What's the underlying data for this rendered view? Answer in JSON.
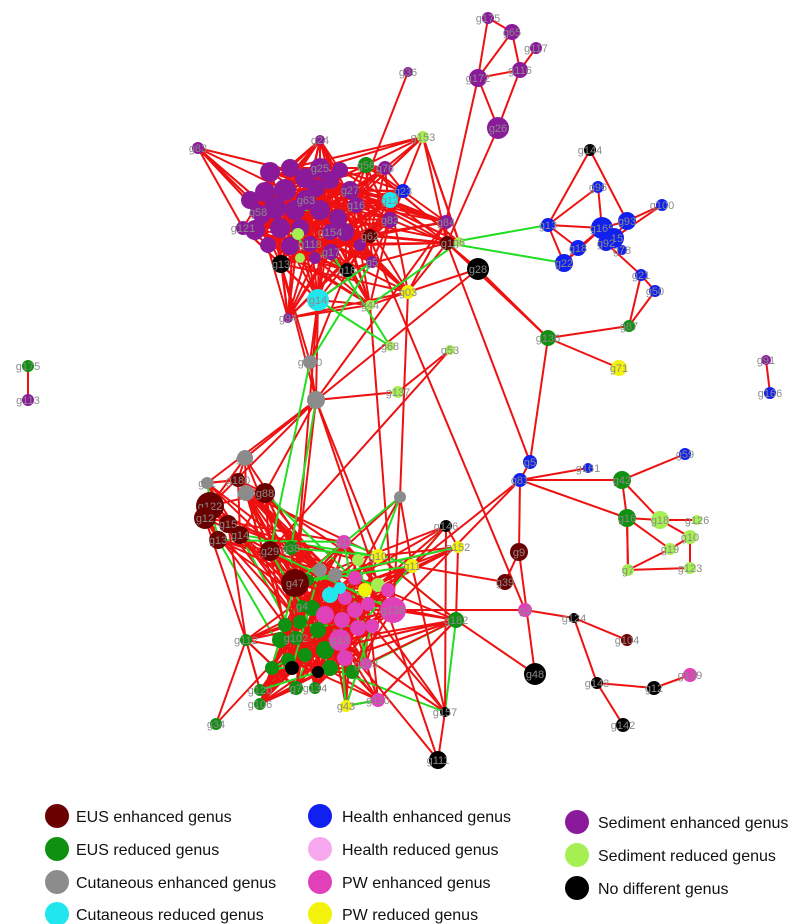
{
  "colors": {
    "EUS_enh": "#6b0000",
    "EUS_red": "#109010",
    "Cut_enh": "#8c8c8c",
    "Cut_red": "#22e6ee",
    "Hea_enh": "#1020ee",
    "Hea_red": "#f7a8ee",
    "PW_enh": "#e040b8",
    "PW_red": "#f2f20a",
    "Sed_enh": "#8a1a9a",
    "Sed_red": "#a6ef52",
    "No_diff": "#000000",
    "edge_pos": "#ee1111",
    "edge_neg": "#22dd22"
  },
  "legend": [
    {
      "label": "EUS enhanced genus",
      "color": "EUS_enh"
    },
    {
      "label": "EUS reduced genus",
      "color": "EUS_red"
    },
    {
      "label": "Cutaneous enhanced genus",
      "color": "Cut_enh"
    },
    {
      "label": "Cutaneous reduced genus",
      "color": "Cut_red"
    },
    {
      "label": "Health enhanced genus",
      "color": "Hea_enh"
    },
    {
      "label": "Health reduced genus",
      "color": "Hea_red"
    },
    {
      "label": "PW enhanced genus",
      "color": "PW_enh"
    },
    {
      "label": "PW reduced genus",
      "color": "PW_red"
    },
    {
      "label": "Sediment enhanced genus",
      "color": "Sed_enh"
    },
    {
      "label": "Sediment reduced genus",
      "color": "Sed_red"
    },
    {
      "label": "No different genus",
      "color": "No_diff"
    }
  ],
  "nodes": [
    {
      "id": "g175",
      "label": "g175",
      "color": "Sed_enh"
    },
    {
      "id": "g65",
      "label": "g65",
      "color": "Sed_enh"
    },
    {
      "id": "g117",
      "label": "g117",
      "color": "Sed_enh"
    },
    {
      "id": "g116",
      "label": "g116",
      "color": "Sed_enh"
    },
    {
      "id": "g172",
      "label": "g172",
      "color": "Sed_enh"
    },
    {
      "id": "g26",
      "label": "g26",
      "color": "Sed_enh"
    },
    {
      "id": "g36",
      "label": "g36",
      "color": "Sed_enh"
    },
    {
      "id": "g153",
      "label": "g153",
      "color": "Sed_red"
    },
    {
      "id": "g83",
      "label": "g83",
      "color": "Sed_enh"
    },
    {
      "id": "g24",
      "label": "g24",
      "color": "Sed_enh"
    },
    {
      "id": "g56",
      "label": "g56",
      "color": "EUS_red"
    },
    {
      "id": "g76",
      "label": "g76",
      "color": "Sed_enh"
    },
    {
      "id": "g23",
      "label": "g23",
      "color": "Hea_enh"
    },
    {
      "id": "g12",
      "label": "g12",
      "color": "Cut_red"
    },
    {
      "id": "g25",
      "label": "g25",
      "color": "Sed_enh"
    },
    {
      "id": "g27",
      "label": "g27",
      "color": "Sed_enh"
    },
    {
      "id": "g63",
      "label": "g63",
      "color": "Sed_enh"
    },
    {
      "id": "g16",
      "label": "g16",
      "color": "Sed_enh"
    },
    {
      "id": "g82",
      "label": "g82",
      "color": "Sed_enh"
    },
    {
      "id": "g84",
      "label": "g84",
      "color": "Sed_enh"
    },
    {
      "id": "g154",
      "label": "g154",
      "color": "Sed_enh"
    },
    {
      "id": "g58",
      "label": "g58",
      "color": "Sed_enh"
    },
    {
      "id": "g121",
      "label": "g121",
      "color": "Sed_enh"
    },
    {
      "id": "g118",
      "label": "g118",
      "color": "Sed_enh"
    },
    {
      "id": "g17",
      "label": "g17",
      "color": "Sed_enh"
    },
    {
      "id": "g13",
      "label": "g13",
      "color": "No_diff"
    },
    {
      "id": "g18",
      "label": "g18",
      "color": "No_diff"
    },
    {
      "id": "g62",
      "label": "g62",
      "color": "EUS_enh"
    },
    {
      "id": "g1",
      "label": "g1",
      "color": "EUS_enh"
    },
    {
      "id": "g6",
      "label": "g6",
      "color": "Sed_red"
    },
    {
      "id": "g5",
      "label": "g5",
      "color": "Sed_enh"
    },
    {
      "id": "g14",
      "label": "g14",
      "color": "Cut_red"
    },
    {
      "id": "g94",
      "label": "g94",
      "color": "Sed_enh"
    },
    {
      "id": "g44",
      "label": "g44",
      "color": "Sed_red"
    },
    {
      "id": "g03",
      "label": "g03",
      "color": "PW_red"
    },
    {
      "id": "g28",
      "label": "g28",
      "color": "No_diff"
    },
    {
      "id": "g144",
      "label": "g144",
      "color": "No_diff"
    },
    {
      "id": "g96",
      "label": "g96",
      "color": "Hea_enh"
    },
    {
      "id": "g100",
      "label": "g100",
      "color": "Hea_enh"
    },
    {
      "id": "g13b",
      "label": "g13",
      "color": "Hea_enh"
    },
    {
      "id": "g93",
      "label": "g93",
      "color": "Hea_enh"
    },
    {
      "id": "g165",
      "label": "g165",
      "color": "Hea_enh"
    },
    {
      "id": "g15",
      "label": "g15",
      "color": "Hea_enh"
    },
    {
      "id": "g18b",
      "label": "g18",
      "color": "Hea_enh"
    },
    {
      "id": "g92",
      "label": "g92",
      "color": "Hea_enh"
    },
    {
      "id": "g22",
      "label": "g22",
      "color": "Hea_enh"
    },
    {
      "id": "g78",
      "label": "g78",
      "color": "Hea_enh"
    },
    {
      "id": "g21",
      "label": "g21",
      "color": "Hea_enh"
    },
    {
      "id": "g50",
      "label": "g50",
      "color": "Hea_enh"
    },
    {
      "id": "g87",
      "label": "g87",
      "color": "EUS_red"
    },
    {
      "id": "g136",
      "label": "g136",
      "color": "EUS_red"
    },
    {
      "id": "g71",
      "label": "g71",
      "color": "PW_red"
    },
    {
      "id": "g91",
      "label": "g91",
      "color": "Sed_enh"
    },
    {
      "id": "g166",
      "label": "g166",
      "color": "Hea_enh"
    },
    {
      "id": "g175b",
      "label": "g175",
      "color": "EUS_red"
    },
    {
      "id": "g113",
      "label": "g113",
      "color": "Sed_enh"
    },
    {
      "id": "g150",
      "label": "g150",
      "color": "Cut_enh"
    },
    {
      "id": "g68",
      "label": "g68",
      "color": "Sed_red"
    },
    {
      "id": "g53",
      "label": "g53",
      "color": "Sed_red"
    },
    {
      "id": "g17b",
      "label": "g17",
      "color": "Cut_enh"
    },
    {
      "id": "g137",
      "label": "g137",
      "color": "Sed_red"
    },
    {
      "id": "g5b",
      "label": "g5",
      "color": "Hea_enh"
    },
    {
      "id": "g81",
      "label": "g81",
      "color": "Hea_enh"
    },
    {
      "id": "g161",
      "label": "g161",
      "color": "Hea_enh"
    },
    {
      "id": "g59",
      "label": "g59",
      "color": "Hea_enh"
    },
    {
      "id": "g42",
      "label": "g42",
      "color": "EUS_red"
    },
    {
      "id": "g51",
      "label": "g51",
      "color": "Cut_enh"
    },
    {
      "id": "g11",
      "label": "g11",
      "color": "Cut_enh"
    },
    {
      "id": "g180",
      "label": "g180",
      "color": "EUS_enh"
    },
    {
      "id": "g10",
      "label": "g10",
      "color": "Cut_enh"
    },
    {
      "id": "g88",
      "label": "g88",
      "color": "EUS_enh"
    },
    {
      "id": "g122",
      "label": "g122",
      "color": "EUS_enh"
    },
    {
      "id": "g12b",
      "label": "g12",
      "color": "EUS_enh"
    },
    {
      "id": "g15b",
      "label": "g15",
      "color": "EUS_enh"
    },
    {
      "id": "g14b",
      "label": "g14",
      "color": "EUS_enh"
    },
    {
      "id": "g13c",
      "label": "g13",
      "color": "EUS_enh"
    },
    {
      "id": "g8",
      "label": "g8",
      "color": "Cut_enh"
    },
    {
      "id": "g146",
      "label": "g146",
      "color": "No_diff"
    },
    {
      "id": "g16b",
      "label": "g16",
      "color": "EUS_red"
    },
    {
      "id": "g18c",
      "label": "g18",
      "color": "Sed_red"
    },
    {
      "id": "g126",
      "label": "g126",
      "color": "Sed_red"
    },
    {
      "id": "g10b",
      "label": "g10",
      "color": "Sed_red"
    },
    {
      "id": "g9",
      "label": "g9",
      "color": "EUS_enh"
    },
    {
      "id": "g29",
      "label": "g29",
      "color": "EUS_enh"
    },
    {
      "id": "g38",
      "label": "g38",
      "color": "EUS_red"
    },
    {
      "id": "g11b",
      "label": "g11",
      "color": "PW_enh"
    },
    {
      "id": "g152",
      "label": "g152",
      "color": "PW_red"
    },
    {
      "id": "g19",
      "label": "g19",
      "color": "Sed_red"
    },
    {
      "id": "g123",
      "label": "g123",
      "color": "Sed_red"
    },
    {
      "id": "g7",
      "label": "g7",
      "color": "Sed_red"
    },
    {
      "id": "g47",
      "label": "g47",
      "color": "EUS_enh"
    },
    {
      "id": "g39",
      "label": "g39",
      "color": "EUS_enh"
    },
    {
      "id": "g10c",
      "label": "g10",
      "color": "PW_red"
    },
    {
      "id": "g11c",
      "label": "g11",
      "color": "PW_red"
    },
    {
      "id": "g3",
      "label": "g3",
      "color": "PW_enh"
    },
    {
      "id": "g138",
      "label": "g138",
      "color": "PW_enh"
    },
    {
      "id": "g182",
      "label": "g182",
      "color": "EUS_red"
    },
    {
      "id": "g124",
      "label": "g124",
      "color": "No_diff"
    },
    {
      "id": "g104",
      "label": "g104",
      "color": "EUS_enh"
    },
    {
      "id": "g112",
      "label": "g112",
      "color": "EUS_red"
    },
    {
      "id": "g102",
      "label": "g102",
      "color": "EUS_red"
    },
    {
      "id": "g13d",
      "label": "g13",
      "color": "PW_enh"
    },
    {
      "id": "g103",
      "label": "g103",
      "color": "PW_enh"
    },
    {
      "id": "g48",
      "label": "g48",
      "color": "No_diff"
    },
    {
      "id": "g143",
      "label": "g143",
      "color": "No_diff"
    },
    {
      "id": "g12c",
      "label": "g12",
      "color": "No_diff"
    },
    {
      "id": "g139",
      "label": "g139",
      "color": "PW_enh"
    },
    {
      "id": "g120",
      "label": "g120",
      "color": "EUS_red"
    },
    {
      "id": "g106",
      "label": "g106",
      "color": "EUS_red"
    },
    {
      "id": "g7b",
      "label": "g7",
      "color": "EUS_red"
    },
    {
      "id": "g134",
      "label": "g134",
      "color": "EUS_red"
    },
    {
      "id": "g43",
      "label": "g43",
      "color": "PW_red"
    },
    {
      "id": "g110",
      "label": "g110",
      "color": "PW_enh"
    },
    {
      "id": "g157",
      "label": "g157",
      "color": "No_diff"
    },
    {
      "id": "g142",
      "label": "g142",
      "color": "No_diff"
    },
    {
      "id": "g34",
      "label": "g34",
      "color": "EUS_red"
    },
    {
      "id": "g111",
      "label": "g111",
      "color": "No_diff"
    },
    {
      "id": "g4",
      "label": "g4",
      "color": "EUS_red"
    }
  ]
}
